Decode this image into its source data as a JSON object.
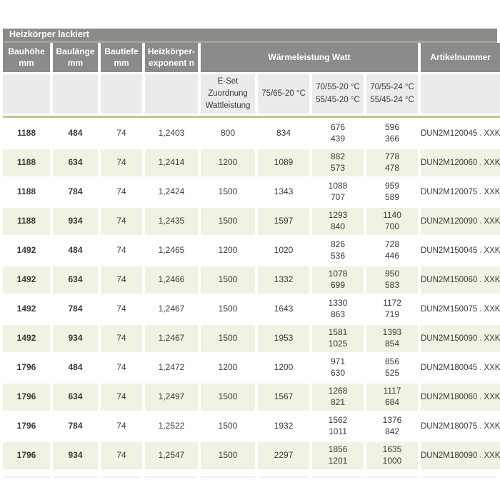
{
  "table": {
    "title": "Heizkörper lackiert",
    "columns": [
      {
        "lines": [
          "Bauhöhe",
          "mm"
        ]
      },
      {
        "lines": [
          "Baulänge",
          "mm"
        ]
      },
      {
        "lines": [
          "Bautiefe",
          "mm"
        ]
      },
      {
        "lines": [
          "Heizkörper-",
          "exponent n"
        ]
      },
      {
        "lines": [
          "Artikelnummer"
        ]
      }
    ],
    "group_header": "Wärmeleistung Watt",
    "subheaders": {
      "eset": [
        "E-Set",
        "Zuordnung",
        "Wattleistung"
      ],
      "t7565_20": [
        "75/65-20 °C"
      ],
      "t7055_20": [
        "70/55-20 °C",
        "55/45-20 °C"
      ],
      "t7055_24": [
        "70/55-24 °C",
        "55/45-24 °C"
      ]
    },
    "artikel_separator": ".",
    "rows": [
      {
        "bauhoehe": "1188",
        "baulaenge": "484",
        "bautiefe": "74",
        "exponent": "1,2403",
        "eset": "800",
        "watt_7565_20": "834",
        "watt_7055_20": [
          "676",
          "439"
        ],
        "watt_7055_24": [
          "596",
          "366"
        ],
        "artikel": {
          "code": "DUN2M120045",
          "suffix": "XXK"
        }
      },
      {
        "bauhoehe": "1188",
        "baulaenge": "634",
        "bautiefe": "74",
        "exponent": "1,2414",
        "eset": "1200",
        "watt_7565_20": "1089",
        "watt_7055_20": [
          "882",
          "573"
        ],
        "watt_7055_24": [
          "778",
          "478"
        ],
        "artikel": {
          "code": "DUN2M120060",
          "suffix": "XXK"
        }
      },
      {
        "bauhoehe": "1188",
        "baulaenge": "784",
        "bautiefe": "74",
        "exponent": "1,2424",
        "eset": "1500",
        "watt_7565_20": "1343",
        "watt_7055_20": [
          "1088",
          "707"
        ],
        "watt_7055_24": [
          "959",
          "589"
        ],
        "artikel": {
          "code": "DUN2M120075",
          "suffix": "XXK"
        }
      },
      {
        "bauhoehe": "1188",
        "baulaenge": "934",
        "bautiefe": "74",
        "exponent": "1,2435",
        "eset": "1500",
        "watt_7565_20": "1597",
        "watt_7055_20": [
          "1293",
          "840"
        ],
        "watt_7055_24": [
          "1140",
          "700"
        ],
        "artikel": {
          "code": "DUN2M120090",
          "suffix": "XXK"
        }
      },
      {
        "bauhoehe": "1492",
        "baulaenge": "484",
        "bautiefe": "74",
        "exponent": "1,2465",
        "eset": "1200",
        "watt_7565_20": "1020",
        "watt_7055_20": [
          "826",
          "536"
        ],
        "watt_7055_24": [
          "728",
          "446"
        ],
        "artikel": {
          "code": "DUN2M150045",
          "suffix": "XXK"
        }
      },
      {
        "bauhoehe": "1492",
        "baulaenge": "634",
        "bautiefe": "74",
        "exponent": "1,2466",
        "eset": "1500",
        "watt_7565_20": "1332",
        "watt_7055_20": [
          "1078",
          "699"
        ],
        "watt_7055_24": [
          "950",
          "583"
        ],
        "artikel": {
          "code": "DUN2M150060",
          "suffix": "XXK"
        }
      },
      {
        "bauhoehe": "1492",
        "baulaenge": "784",
        "bautiefe": "74",
        "exponent": "1,2467",
        "eset": "1500",
        "watt_7565_20": "1643",
        "watt_7055_20": [
          "1330",
          "863"
        ],
        "watt_7055_24": [
          "1172",
          "719"
        ],
        "artikel": {
          "code": "DUN2M150075",
          "suffix": "XXK"
        }
      },
      {
        "bauhoehe": "1492",
        "baulaenge": "934",
        "bautiefe": "74",
        "exponent": "1,2467",
        "eset": "1500",
        "watt_7565_20": "1953",
        "watt_7055_20": [
          "1581",
          "1025"
        ],
        "watt_7055_24": [
          "1393",
          "854"
        ],
        "artikel": {
          "code": "DUN2M150090",
          "suffix": "XXK"
        }
      },
      {
        "bauhoehe": "1796",
        "baulaenge": "484",
        "bautiefe": "74",
        "exponent": "1,2472",
        "eset": "1200",
        "watt_7565_20": "1200",
        "watt_7055_20": [
          "971",
          "630"
        ],
        "watt_7055_24": [
          "856",
          "525"
        ],
        "artikel": {
          "code": "DUN2M180045",
          "suffix": "XXK"
        }
      },
      {
        "bauhoehe": "1796",
        "baulaenge": "634",
        "bautiefe": "74",
        "exponent": "1,2497",
        "eset": "1500",
        "watt_7565_20": "1567",
        "watt_7055_20": [
          "1268",
          "821"
        ],
        "watt_7055_24": [
          "1117",
          "684"
        ],
        "artikel": {
          "code": "DUN2M180060",
          "suffix": "XXK"
        }
      },
      {
        "bauhoehe": "1796",
        "baulaenge": "784",
        "bautiefe": "74",
        "exponent": "1,2522",
        "eset": "1500",
        "watt_7565_20": "1932",
        "watt_7055_20": [
          "1562",
          "1011"
        ],
        "watt_7055_24": [
          "1376",
          "842"
        ],
        "artikel": {
          "code": "DUN2M180075",
          "suffix": "XXK"
        }
      },
      {
        "bauhoehe": "1796",
        "baulaenge": "934",
        "bautiefe": "74",
        "exponent": "1,2547",
        "eset": "1500",
        "watt_7565_20": "2297",
        "watt_7055_20": [
          "1856",
          "1201"
        ],
        "watt_7055_24": [
          "1635",
          "1000"
        ],
        "artikel": {
          "code": "DUN2M180090",
          "suffix": "XXK"
        }
      }
    ]
  },
  "colors": {
    "header_bg": "#8b8b89",
    "subheader_bg": "#ebebeb",
    "row_alt_bg": "#f0f2e4",
    "accent_line": "#b5cc92",
    "artikel_dot": "#9bbb59",
    "text": "#3a3a38"
  }
}
